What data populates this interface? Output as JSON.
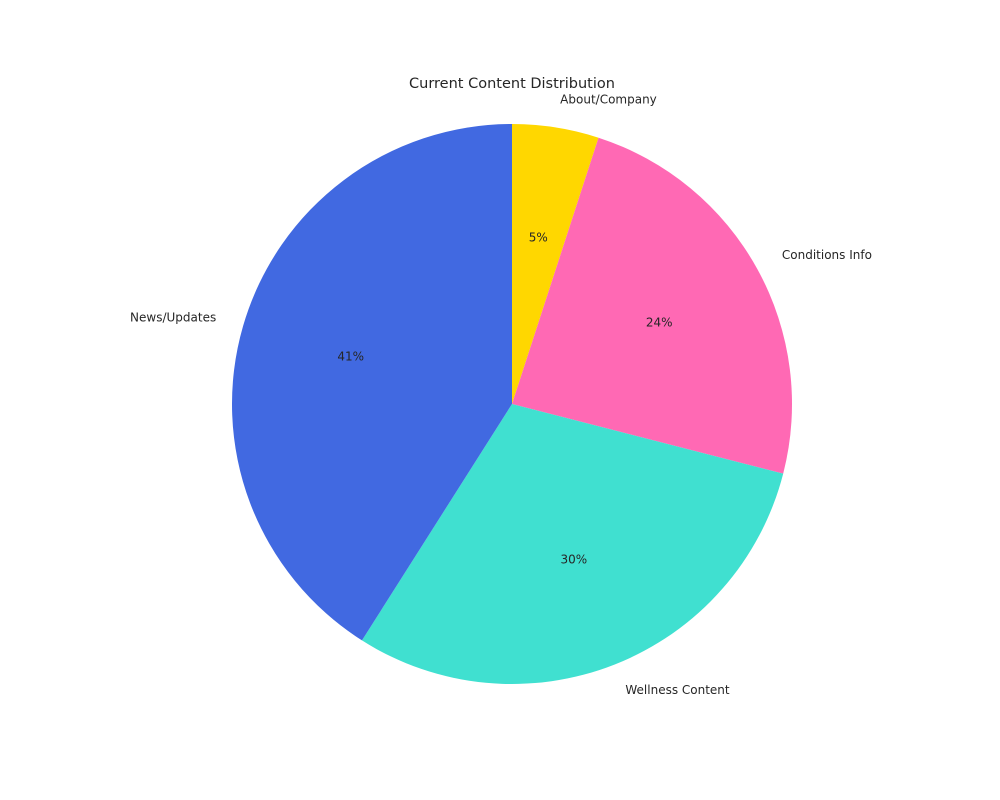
{
  "chart_data": {
    "type": "pie",
    "title": "Current Content Distribution",
    "start_angle_deg": 90,
    "direction": "clockwise",
    "slices": [
      {
        "label": "About/Company",
        "value": 5,
        "pct_label": "5%",
        "color": "#FFD700"
      },
      {
        "label": "Conditions Info",
        "value": 24,
        "pct_label": "24%",
        "color": "#FF69B4"
      },
      {
        "label": "Wellness Content",
        "value": 30,
        "pct_label": "30%",
        "color": "#40E0D0"
      },
      {
        "label": "News/Updates",
        "value": 41,
        "pct_label": "41%",
        "color": "#4169E1"
      }
    ]
  }
}
